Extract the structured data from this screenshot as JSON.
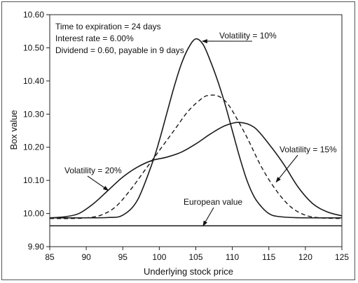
{
  "chart_data": {
    "type": "line",
    "xlabel": "Underlying stock price",
    "ylabel": "Box value",
    "xlim": [
      85,
      125
    ],
    "ylim": [
      9.9,
      10.6
    ],
    "x_ticks": [
      85,
      90,
      95,
      100,
      105,
      110,
      115,
      120,
      125
    ],
    "y_ticks": [
      9.9,
      10.0,
      10.1,
      10.2,
      10.3,
      10.4,
      10.5,
      10.6
    ],
    "x_tick_labels": [
      "85",
      "90",
      "95",
      "100",
      "105",
      "110",
      "115",
      "120",
      "125"
    ],
    "y_tick_labels": [
      "9.90",
      "10.00",
      "10.10",
      "10.20",
      "10.30",
      "10.40",
      "10.50",
      "10.60"
    ],
    "info_lines": [
      "Time to expiration = 24 days",
      "Interest rate = 6.00%",
      "Dividend = 0.60, payable in 9 days"
    ],
    "grid": false,
    "series": [
      {
        "label": "Volatility = 10%",
        "style": "solid",
        "color": "#1a1a1a",
        "x": [
          85,
          90,
          93,
          95,
          97,
          99,
          100,
          101,
          102,
          103,
          104,
          105,
          106,
          107,
          108,
          109,
          110,
          111,
          112,
          113,
          114,
          115,
          116,
          118,
          120,
          125
        ],
        "y": [
          9.987,
          9.987,
          9.988,
          9.995,
          10.04,
          10.15,
          10.22,
          10.3,
          10.38,
          10.45,
          10.5,
          10.527,
          10.51,
          10.46,
          10.4,
          10.33,
          10.25,
          10.17,
          10.1,
          10.05,
          10.02,
          10.0,
          9.992,
          9.988,
          9.987,
          9.987
        ]
      },
      {
        "label": "",
        "style": "dashed",
        "color": "#1a1a1a",
        "x": [
          85,
          88,
          90,
          92,
          94,
          96,
          98,
          100,
          102,
          104,
          106,
          107,
          108,
          109,
          110,
          112,
          114,
          116,
          118,
          120,
          122,
          125
        ],
        "y": [
          9.985,
          9.985,
          9.987,
          9.995,
          10.02,
          10.07,
          10.13,
          10.19,
          10.25,
          10.31,
          10.35,
          10.357,
          10.355,
          10.34,
          10.31,
          10.23,
          10.14,
          10.07,
          10.02,
          9.995,
          9.987,
          9.985
        ]
      },
      {
        "label": "Volatility = 20%",
        "style": "solid",
        "color": "#1a1a1a",
        "x": [
          85,
          87,
          89,
          91,
          93,
          95,
          97,
          99,
          101,
          103,
          105,
          107,
          109,
          111,
          113,
          115,
          117,
          119,
          121,
          123,
          125
        ],
        "y": [
          9.987,
          9.99,
          10.0,
          10.03,
          10.07,
          10.11,
          10.14,
          10.16,
          10.17,
          10.185,
          10.21,
          10.24,
          10.265,
          10.275,
          10.26,
          10.21,
          10.15,
          10.08,
          10.03,
          10.005,
          9.993
        ]
      },
      {
        "label": "European value",
        "style": "solid",
        "color": "#1a1a1a",
        "x": [
          85,
          125
        ],
        "y": [
          9.963,
          9.963
        ]
      }
    ],
    "annotations": [
      {
        "text": "Volatility = 10%",
        "pointer_to": [
          105.9,
          10.52
        ]
      },
      {
        "text": "Volatility = 15%",
        "pointer_to": [
          116,
          10.095
        ]
      },
      {
        "text": "Volatility = 20%",
        "pointer_to": [
          93,
          10.07
        ]
      },
      {
        "text": "European value",
        "pointer_to": [
          106,
          9.963
        ]
      }
    ]
  }
}
